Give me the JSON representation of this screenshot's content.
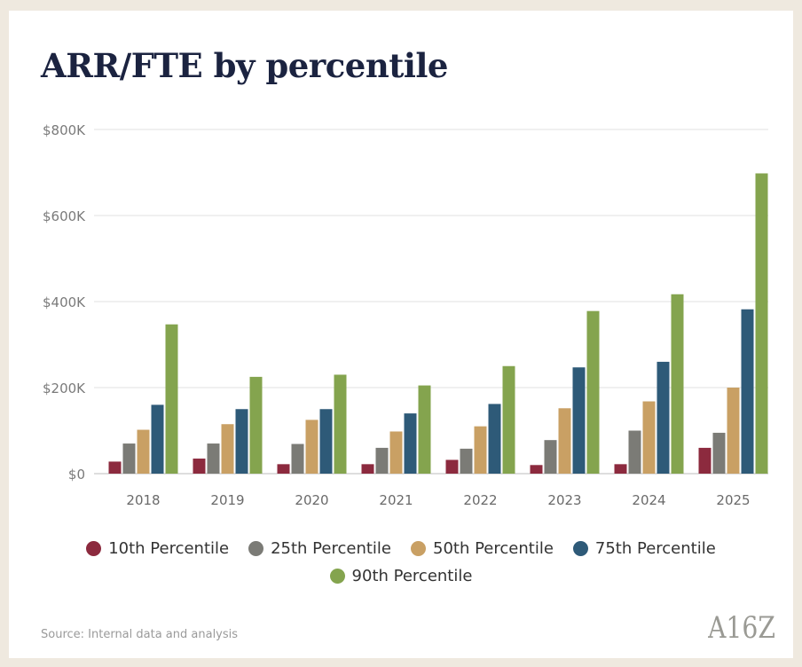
{
  "title": "ARR/FTE by percentile",
  "source": "Source: Internal data and analysis",
  "logo_text": "A16Z",
  "chart_data": {
    "type": "bar",
    "title": "ARR/FTE by percentile",
    "xlabel": "",
    "ylabel": "",
    "ylim": [
      0,
      800000
    ],
    "yticks": [
      0,
      200000,
      400000,
      600000,
      800000
    ],
    "ytick_labels": [
      "$0",
      "$200K",
      "$400K",
      "$600K",
      "$800K"
    ],
    "grid": true,
    "legend_position": "bottom-center",
    "categories": [
      "2018",
      "2019",
      "2020",
      "2021",
      "2022",
      "2023",
      "2024",
      "2025"
    ],
    "series": [
      {
        "name": "10th Percentile",
        "color": "#8c2a3e",
        "values": [
          28000,
          35000,
          22000,
          22000,
          32000,
          20000,
          22000,
          60000
        ]
      },
      {
        "name": "25th Percentile",
        "color": "#7b7b76",
        "values": [
          70000,
          70000,
          69000,
          60000,
          58000,
          78000,
          100000,
          95000
        ]
      },
      {
        "name": "50th Percentile",
        "color": "#c9a064",
        "values": [
          102000,
          115000,
          125000,
          98000,
          110000,
          152000,
          168000,
          200000
        ]
      },
      {
        "name": "75th Percentile",
        "color": "#2e5a78",
        "values": [
          160000,
          150000,
          150000,
          140000,
          162000,
          247000,
          260000,
          382000
        ]
      },
      {
        "name": "90th Percentile",
        "color": "#84a44e",
        "values": [
          347000,
          225000,
          230000,
          205000,
          250000,
          378000,
          417000,
          698000
        ]
      }
    ]
  }
}
